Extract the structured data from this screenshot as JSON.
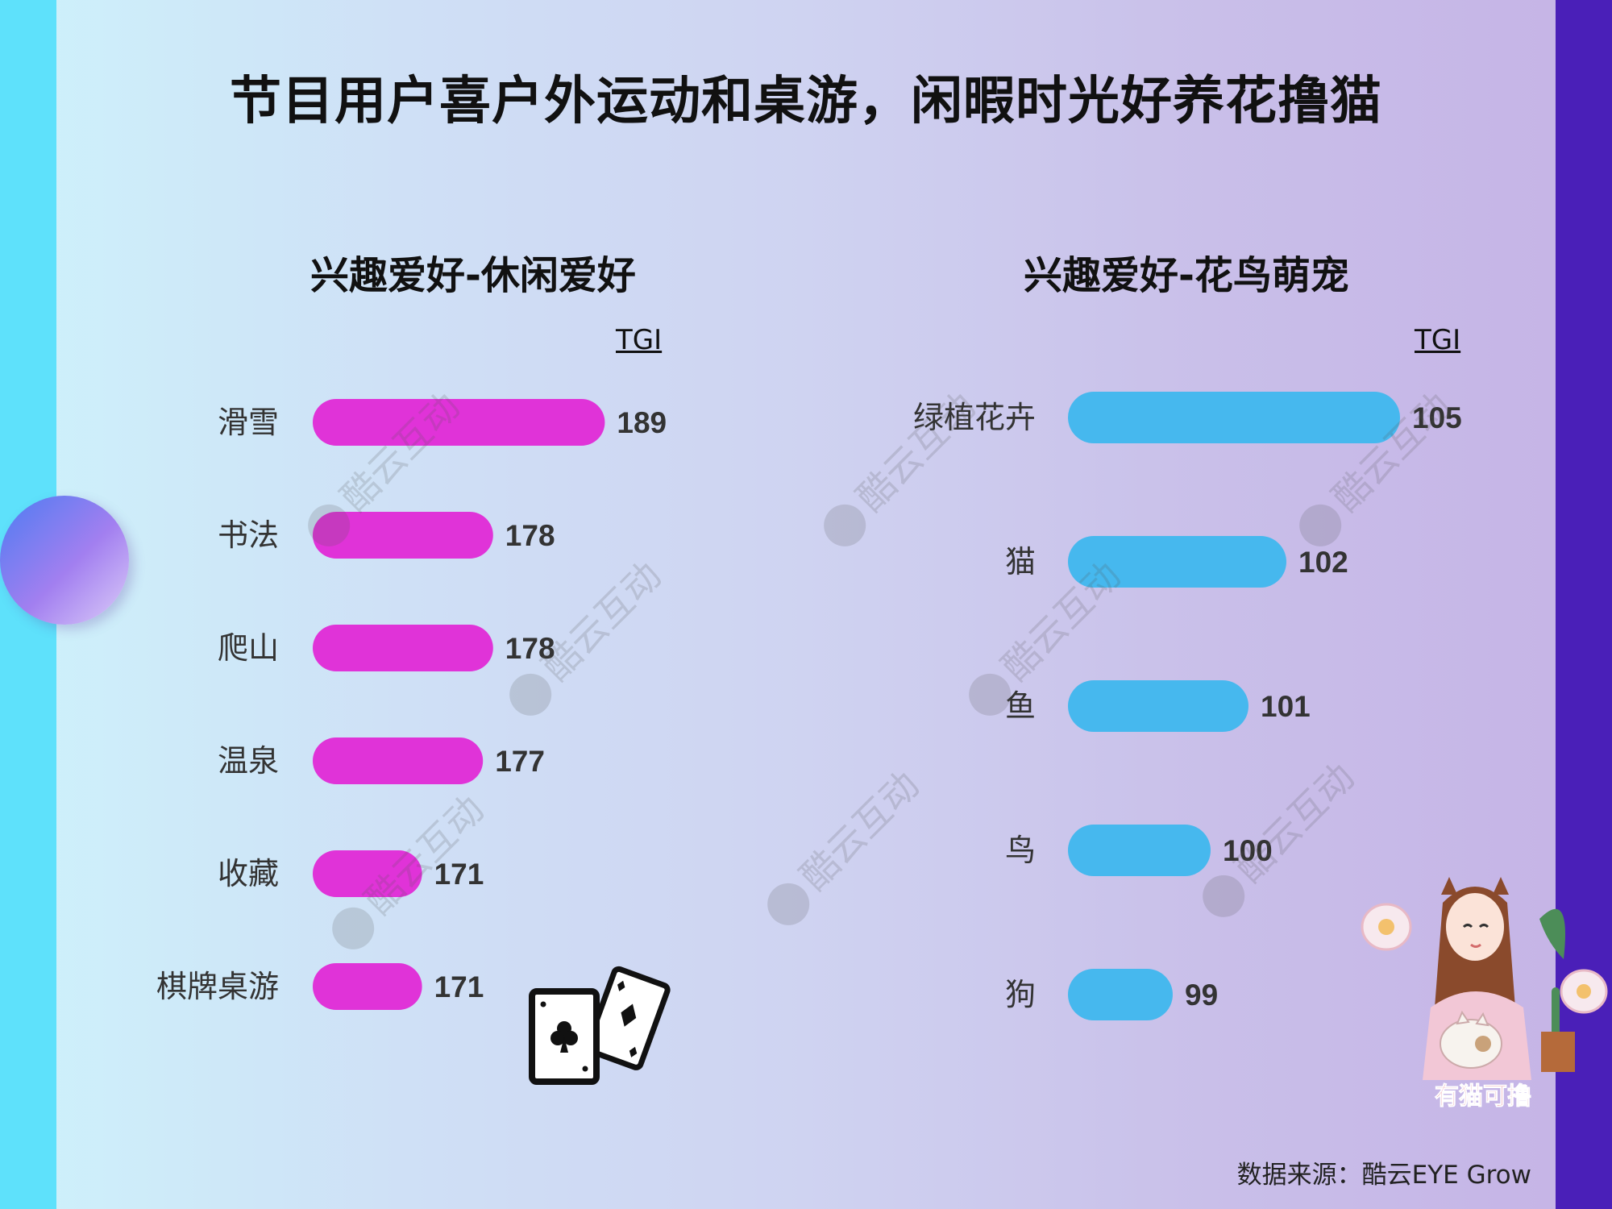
{
  "page": {
    "title": "节目用户喜户外运动和桌游，闲暇时光好养花撸猫",
    "source": "数据来源：酷云EYE Grow",
    "watermark": "酷云互动",
    "illustration_caption": "有猫可撸"
  },
  "colors": {
    "leisure_bar": "#e033d8",
    "pet_bar": "#46b8ee",
    "left_strip": "#5ee1fb",
    "right_strip": "#4a1fb8"
  },
  "chart_data": [
    {
      "type": "bar",
      "orientation": "horizontal",
      "title": "兴趣爱好-休闲爱好",
      "value_header": "TGI",
      "categories": [
        "滑雪",
        "书法",
        "爬山",
        "温泉",
        "收藏",
        "棋牌桌游"
      ],
      "values": [
        189,
        178,
        178,
        177,
        171,
        171
      ]
    },
    {
      "type": "bar",
      "orientation": "horizontal",
      "title": "兴趣爱好-花鸟萌宠",
      "value_header": "TGI",
      "categories": [
        "绿植花卉",
        "猫",
        "鱼",
        "鸟",
        "狗"
      ],
      "values": [
        105,
        102,
        101,
        100,
        99
      ]
    }
  ]
}
